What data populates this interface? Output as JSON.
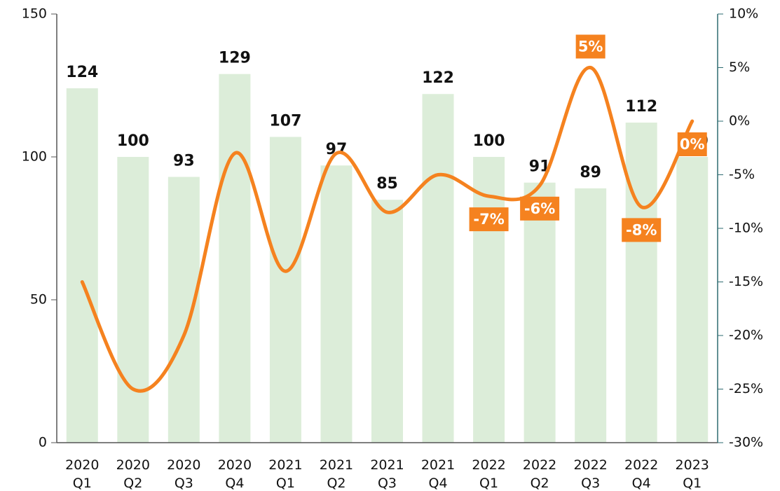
{
  "chart_data": {
    "type": "bar_line",
    "categories": [
      [
        "2020",
        "Q1"
      ],
      [
        "2020",
        "Q2"
      ],
      [
        "2020",
        "Q3"
      ],
      [
        "2020",
        "Q4"
      ],
      [
        "2021",
        "Q1"
      ],
      [
        "2021",
        "Q2"
      ],
      [
        "2021",
        "Q3"
      ],
      [
        "2021",
        "Q4"
      ],
      [
        "2022",
        "Q1"
      ],
      [
        "2022",
        "Q2"
      ],
      [
        "2022",
        "Q3"
      ],
      [
        "2022",
        "Q4"
      ],
      [
        "2023",
        "Q1"
      ]
    ],
    "series": [
      {
        "type": "bar",
        "color": "#dcedd9",
        "values": [
          124,
          100,
          93,
          129,
          107,
          97,
          85,
          122,
          100,
          91,
          89,
          112,
          100
        ]
      },
      {
        "type": "line",
        "axis": "y2",
        "color": "#f5821f",
        "values": [
          -15,
          -25,
          -20,
          -3,
          -14,
          -3,
          -8.5,
          -5,
          -7,
          -6,
          5,
          -8,
          0
        ],
        "value_labels": [
          null,
          null,
          null,
          null,
          null,
          null,
          null,
          null,
          "-7%",
          "-6%",
          "5%",
          "-8%",
          "0%"
        ]
      }
    ],
    "ylim": [
      0,
      150
    ],
    "yticks": [
      0,
      50,
      100,
      150
    ],
    "y2lim": [
      -30,
      10
    ],
    "y2ticks": [
      {
        "value": -30,
        "label": "-30%"
      },
      {
        "value": -25,
        "label": "-25%"
      },
      {
        "value": -20,
        "label": "-20%"
      },
      {
        "value": -15,
        "label": "-15%"
      },
      {
        "value": -10,
        "label": "-10%"
      },
      {
        "value": -5,
        "label": "-5%"
      },
      {
        "value": 0,
        "label": "0%"
      },
      {
        "value": 5,
        "label": "5%"
      },
      {
        "value": 10,
        "label": "10%"
      }
    ]
  }
}
